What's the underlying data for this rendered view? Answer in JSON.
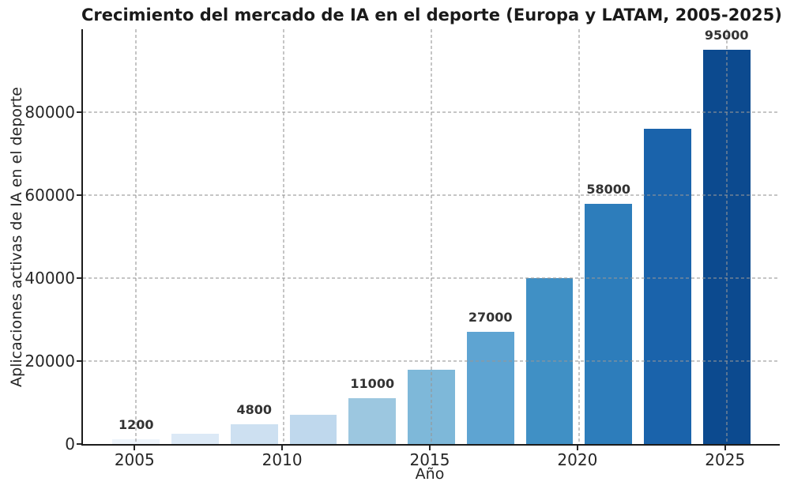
{
  "chart_data": {
    "type": "bar",
    "title": "Crecimiento del mercado de IA en el deporte (Europa y LATAM, 2005-2025)",
    "xlabel": "Año",
    "ylabel": "Aplicaciones activas de IA en el deporte",
    "categories": [
      2005,
      2007,
      2009,
      2011,
      2013,
      2015,
      2017,
      2019,
      2021,
      2023,
      2025
    ],
    "values": [
      1200,
      2400,
      4800,
      7000,
      11000,
      18000,
      27000,
      40000,
      58000,
      76000,
      95000
    ],
    "value_labels": [
      "1200",
      null,
      "4800",
      null,
      "11000",
      null,
      "27000",
      null,
      "58000",
      null,
      "95000"
    ],
    "bar_colors": [
      "#eef4fb",
      "#dce9f6",
      "#cde0f1",
      "#bfd8ed",
      "#9cc7e0",
      "#7eb8d9",
      "#5ea4d2",
      "#4090c5",
      "#2d7dbb",
      "#1a63ab",
      "#0c4a8f"
    ],
    "x_ticks": [
      2005,
      2010,
      2015,
      2020,
      2025
    ],
    "y_ticks": [
      0,
      20000,
      40000,
      60000,
      80000
    ],
    "xlim": [
      2003.2,
      2026.8
    ],
    "ylim": [
      0,
      100000
    ],
    "bar_width_years": 1.6,
    "grid": "dashed, both axes, drawn over bars",
    "legend": "none",
    "colors": {
      "background": "#ffffff",
      "spine": "#1c1c1c",
      "grid": "#a8a8a8",
      "title_text": "#1a1a1a",
      "tick_text": "#262626",
      "value_label_text": "#333333"
    }
  }
}
